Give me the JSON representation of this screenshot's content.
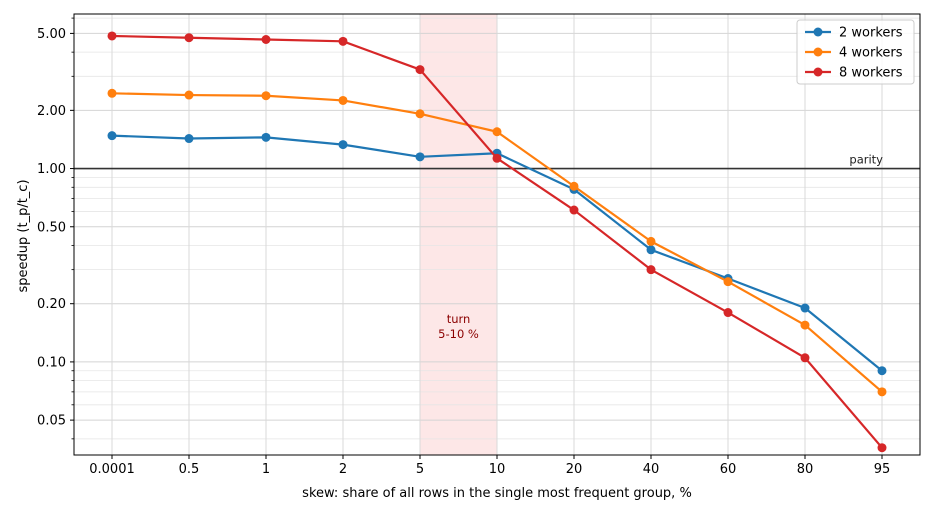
{
  "chart_data": {
    "type": "line",
    "title": "",
    "xlabel": "skew: share of all rows in the single most frequent group, %",
    "ylabel": "speedup (t_p/t_c)",
    "y_scale": "log",
    "ylim": [
      0.033,
      6.3
    ],
    "yticks": [
      0.05,
      0.1,
      0.2,
      0.5,
      1.0,
      2.0,
      5.0
    ],
    "ytick_labels": [
      "0.05",
      "0.10",
      "0.20",
      "0.50",
      "1.00",
      "2.00",
      "5.00"
    ],
    "categories": [
      "0.0001",
      "0.5",
      "1",
      "2",
      "5",
      "10",
      "20",
      "40",
      "60",
      "80",
      "95"
    ],
    "grid": true,
    "legend_position": "top-right",
    "series": [
      {
        "name": "2 workers",
        "color": "#1f77b4",
        "values": [
          1.48,
          1.43,
          1.45,
          1.33,
          1.15,
          1.2,
          0.78,
          0.38,
          0.27,
          0.19,
          0.09
        ]
      },
      {
        "name": "4 workers",
        "color": "#ff7f0e",
        "values": [
          2.45,
          2.4,
          2.38,
          2.25,
          1.92,
          1.55,
          0.81,
          0.42,
          0.26,
          0.155,
          0.07
        ]
      },
      {
        "name": "8 workers",
        "color": "#d62728",
        "values": [
          4.85,
          4.75,
          4.65,
          4.55,
          3.25,
          1.13,
          0.61,
          0.3,
          0.18,
          0.105,
          0.036
        ]
      }
    ],
    "reference_line": {
      "y": 1.0,
      "label": "parity",
      "color": "#333333"
    },
    "highlight_band": {
      "from_category": "5",
      "to_category": "10",
      "color": "#fde3e3",
      "label_line1": "turn",
      "label_line2": "5-10 %",
      "label_color": "#8b0000"
    }
  }
}
